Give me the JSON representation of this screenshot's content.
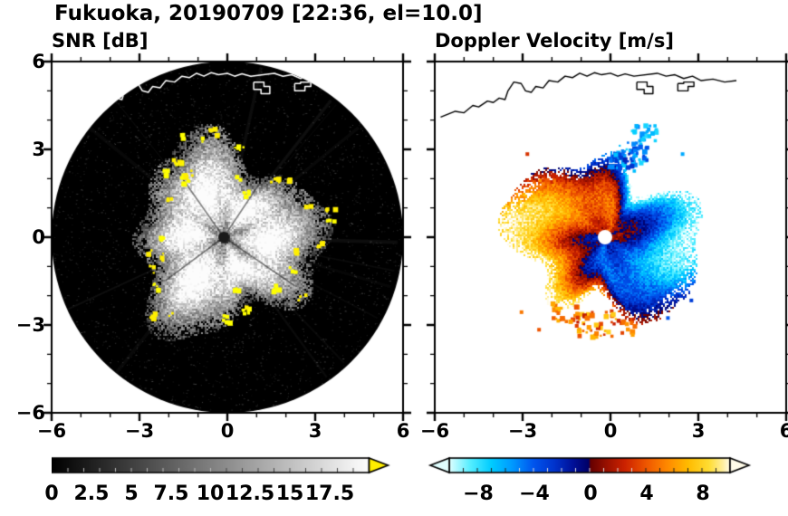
{
  "header": {
    "title": "Fukuoka, 20190709 [22:36, el=10.0]"
  },
  "chart_data": {
    "type": "heatmap",
    "station": "Fukuoka",
    "date": "20190709",
    "time": "22:36",
    "elevation_deg": "10.0",
    "panels": [
      {
        "id": "snr",
        "title": "SNR [dB]",
        "kind": "radar-ppi",
        "x_range_km": [
          -6,
          6
        ],
        "y_range_km": [
          -6,
          6
        ],
        "x_ticks": [
          -6,
          -3,
          0,
          3,
          6
        ],
        "y_ticks": [
          6,
          3,
          0,
          -3,
          -6
        ],
        "x_tick_labels": [
          "−6",
          "−3",
          "0",
          "3",
          "6"
        ],
        "y_tick_labels": [
          "6",
          "3",
          "0",
          "−3",
          "−6"
        ],
        "minor_tick_step_km": 1,
        "background_color": "#000000",
        "echo_color_low": "#000000",
        "echo_color_high": "#ffffff",
        "overflow_color": "#ffee00",
        "description": "Black 6 km radius radar scan disk; grayscale echo blob about 3 km radius centered near origin with ragged bright edges, dark center dot, and yellow high-SNR speckles around the periphery; thin white coastline across the top of the disk.",
        "colorbar": {
          "range": [
            0,
            20
          ],
          "tick_values": [
            0,
            2.5,
            5,
            7.5,
            10,
            12.5,
            15,
            17.5
          ],
          "tick_labels": [
            "0",
            "2.5",
            "5",
            "7.5",
            "10",
            "12.5",
            "15",
            "17.5"
          ],
          "over_arrow_color": "#ffee00",
          "stops": [
            [
              0,
              "#000000"
            ],
            [
              20,
              "#ffffff"
            ]
          ]
        }
      },
      {
        "id": "velocity",
        "title": "Doppler Velocity [m/s]",
        "kind": "radar-ppi",
        "x_range_km": [
          -6,
          6
        ],
        "y_range_km": [
          -6,
          6
        ],
        "x_ticks": [
          -6,
          -3,
          0,
          3,
          6
        ],
        "y_ticks": [
          6,
          3,
          0,
          -3,
          -6
        ],
        "x_tick_labels": [
          "−6",
          "−3",
          "0",
          "3",
          "6"
        ],
        "y_tick_labels": [],
        "minor_tick_step_km": 1,
        "background_color": "#ffffff",
        "description": "White background with black coastline across the top; swirling Doppler velocity blob about 3 km radius centered near origin: dark navy/blue (toward) on the right and inner-left, red/orange (away) on the left and bottom, white data-gap dot at the radar center, scattered colored fragments around the edges.",
        "colorbar": {
          "range": [
            -10,
            10
          ],
          "tick_values": [
            -8,
            -4,
            0,
            4,
            8
          ],
          "tick_labels": [
            "−8",
            "−4",
            "0",
            "4",
            "8"
          ],
          "stops": [
            [
              -10,
              "#e0ffff"
            ],
            [
              -8.5,
              "#55eeff"
            ],
            [
              -7,
              "#00ccff"
            ],
            [
              -5.5,
              "#0099ff"
            ],
            [
              -4,
              "#0055ee"
            ],
            [
              -2.5,
              "#0033cc"
            ],
            [
              -1.2,
              "#001199"
            ],
            [
              -0.05,
              "#000066"
            ],
            [
              0.05,
              "#660000"
            ],
            [
              1.2,
              "#991100"
            ],
            [
              2.5,
              "#cc2200"
            ],
            [
              4,
              "#ee5500"
            ],
            [
              5.5,
              "#ff8800"
            ],
            [
              7,
              "#ffbb00"
            ],
            [
              8.5,
              "#ffdd33"
            ],
            [
              9.5,
              "#ffefa0"
            ],
            [
              10,
              "#fffbe8"
            ]
          ]
        }
      }
    ],
    "coastline_km": [
      [
        -5.8,
        4.1
      ],
      [
        -5.3,
        4.3
      ],
      [
        -5.0,
        4.25
      ],
      [
        -4.7,
        4.5
      ],
      [
        -4.5,
        4.45
      ],
      [
        -4.2,
        4.65
      ],
      [
        -4.0,
        4.6
      ],
      [
        -3.8,
        4.75
      ],
      [
        -3.6,
        4.7
      ],
      [
        -3.5,
        5.0
      ],
      [
        -3.3,
        5.3
      ],
      [
        -3.05,
        5.25
      ],
      [
        -2.9,
        5.0
      ],
      [
        -2.7,
        4.95
      ],
      [
        -2.55,
        5.15
      ],
      [
        -2.3,
        5.1
      ],
      [
        -2.1,
        5.35
      ],
      [
        -1.8,
        5.3
      ],
      [
        -1.55,
        5.5
      ],
      [
        -1.3,
        5.45
      ],
      [
        -1.05,
        5.6
      ],
      [
        -0.8,
        5.5
      ],
      [
        -0.55,
        5.62
      ],
      [
        -0.3,
        5.55
      ],
      [
        0.0,
        5.6
      ],
      [
        0.25,
        5.5
      ],
      [
        0.5,
        5.58
      ],
      [
        0.8,
        5.5
      ],
      [
        1.6,
        5.6
      ],
      [
        1.9,
        5.5
      ],
      [
        2.2,
        5.55
      ],
      [
        2.5,
        5.42
      ],
      [
        2.8,
        5.5
      ],
      [
        3.1,
        5.35
      ],
      [
        3.5,
        5.4
      ],
      [
        3.9,
        5.3
      ],
      [
        4.3,
        5.35
      ]
    ],
    "port_outlines_km": [
      [
        [
          0.9,
          5.3
        ],
        [
          0.9,
          5.05
        ],
        [
          1.15,
          5.05
        ],
        [
          1.15,
          4.9
        ],
        [
          1.45,
          4.9
        ],
        [
          1.45,
          5.15
        ],
        [
          1.25,
          5.15
        ],
        [
          1.25,
          5.3
        ],
        [
          0.9,
          5.3
        ]
      ],
      [
        [
          2.3,
          5.25
        ],
        [
          2.3,
          5.0
        ],
        [
          2.65,
          5.0
        ],
        [
          2.65,
          5.15
        ],
        [
          2.85,
          5.15
        ],
        [
          2.85,
          5.3
        ],
        [
          2.5,
          5.3
        ],
        [
          2.5,
          5.25
        ],
        [
          2.3,
          5.25
        ]
      ]
    ]
  }
}
